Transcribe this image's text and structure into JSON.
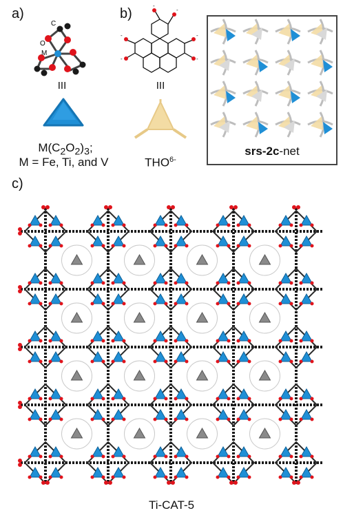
{
  "colors": {
    "metal": "#1f8fd6",
    "oxygen": "#e0141c",
    "carbon": "#1a1a1a",
    "ligand": "#f3dca4",
    "net_gray": "#9a9a9a"
  },
  "panel_a": {
    "label": "a)",
    "atom_c": "C",
    "atom_o": "O",
    "atom_m": "M",
    "connectivity": "III",
    "formula_prefix": "M(C",
    "sub1": "2",
    "mid1": "O",
    "sub2": "2",
    "formula_suffix": ")",
    "sub3": "3",
    "semicolon": ";",
    "metals": "M = Fe, Ti, and V"
  },
  "panel_b": {
    "label": "b)",
    "connectivity": "III",
    "ligand_base": "THO",
    "ligand_charge": "6-",
    "oxo_charge": "-"
  },
  "net_panel": {
    "name_bold": "srs-2c",
    "name_rest": "-net"
  },
  "panel_c": {
    "label": "c)",
    "caption": "Ti-CAT-5"
  }
}
